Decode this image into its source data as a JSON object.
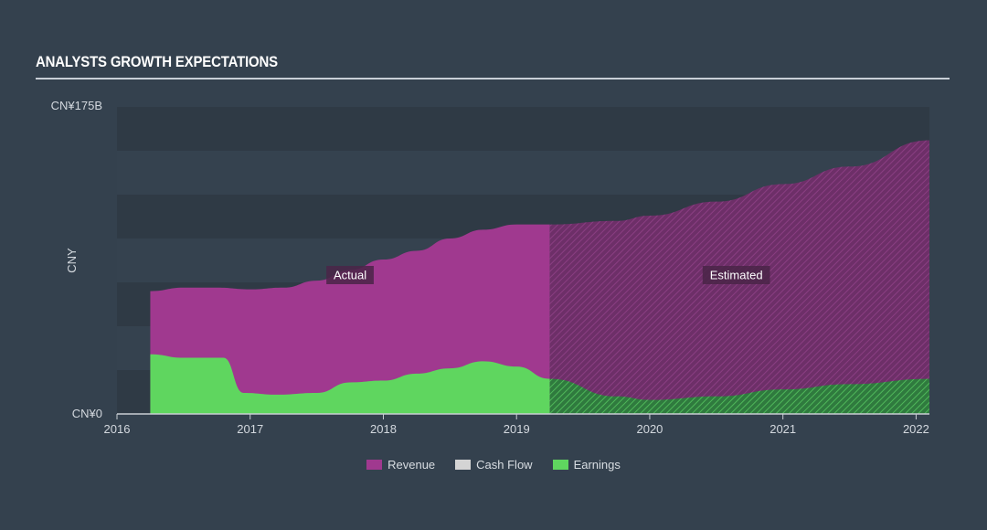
{
  "title": "ANALYSTS GROWTH EXPECTATIONS",
  "chart_data": {
    "type": "area",
    "title": "ANALYSTS GROWTH EXPECTATIONS",
    "ylabel": "CNY",
    "y_top_label": "CN¥175B",
    "y_bottom_label": "CN¥0",
    "ylim": [
      0,
      175
    ],
    "xlim": [
      2016,
      2022.1
    ],
    "x_ticks": [
      2016,
      2017,
      2018,
      2019,
      2020,
      2021,
      2022
    ],
    "x_tick_labels": [
      "2016",
      "2017",
      "2018",
      "2019",
      "2020",
      "2021",
      "2022"
    ],
    "actual_estimated_boundary": 2019.25,
    "region_labels": {
      "actual": "Actual",
      "estimated": "Estimated"
    },
    "series": [
      {
        "name": "Revenue",
        "color": "#a0398f",
        "x": [
          2016.25,
          2016.5,
          2016.75,
          2017.0,
          2017.25,
          2017.5,
          2017.75,
          2018.0,
          2018.25,
          2018.5,
          2018.75,
          2019.0,
          2019.25,
          2019.75,
          2020.0,
          2020.5,
          2021.0,
          2021.5,
          2022.1
        ],
        "values": [
          70,
          72,
          72,
          71,
          72,
          76,
          82,
          88,
          93,
          100,
          105,
          108,
          108,
          110,
          113,
          121,
          131,
          141,
          156
        ]
      },
      {
        "name": "Cash Flow",
        "color": "#d4d4d4",
        "x": [],
        "values": []
      },
      {
        "name": "Earnings",
        "color": "#5fd65f",
        "x": [
          2016.25,
          2016.5,
          2016.8,
          2016.95,
          2017.2,
          2017.5,
          2017.75,
          2018.0,
          2018.25,
          2018.5,
          2018.75,
          2019.0,
          2019.25,
          2019.75,
          2020.0,
          2020.5,
          2021.0,
          2021.5,
          2022.1
        ],
        "values": [
          34,
          32,
          32,
          12,
          11,
          12,
          18,
          19,
          23,
          26,
          30,
          27,
          20,
          10,
          8,
          10,
          14,
          17,
          20
        ]
      }
    ],
    "legend": [
      "Revenue",
      "Cash Flow",
      "Earnings"
    ],
    "legend_position": "bottom-center",
    "grid": "horizontal bands"
  }
}
